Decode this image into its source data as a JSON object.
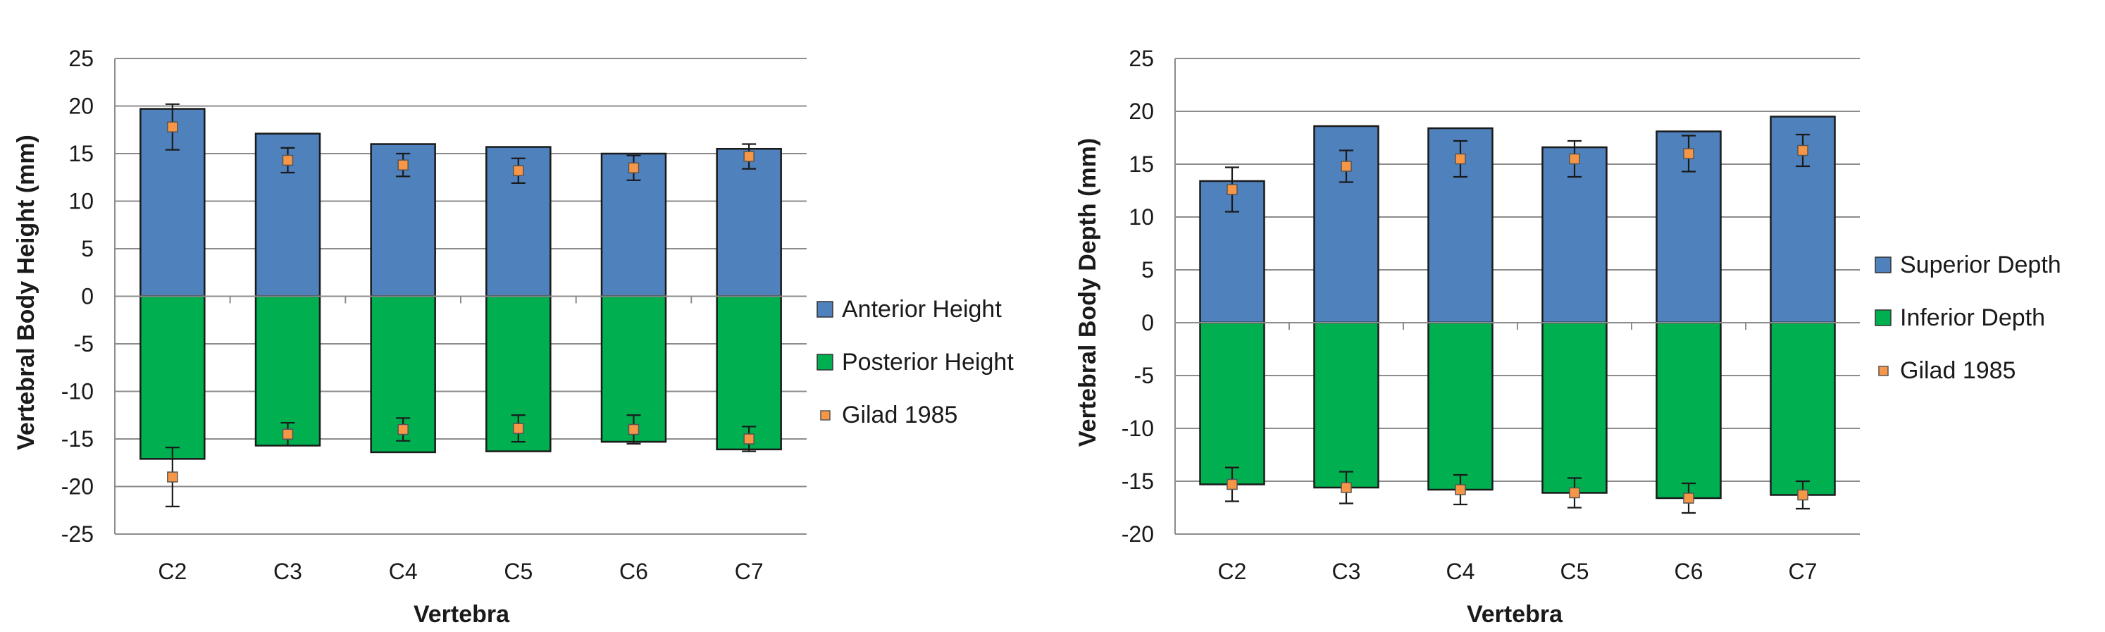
{
  "chart_data": [
    {
      "type": "bar",
      "stacked": true,
      "categories": [
        "C2",
        "C3",
        "C4",
        "C5",
        "C6",
        "C7"
      ],
      "xlabel": "Vertebra",
      "ylabel": "Vertebral Body Height (mm)",
      "ylim": [
        -25,
        25
      ],
      "yticks": [
        25,
        20,
        15,
        10,
        5,
        0,
        -5,
        -10,
        -15,
        -20,
        -25
      ],
      "grid": true,
      "legend_position": "right",
      "series": [
        {
          "name": "Anterior Height",
          "color": "#4f81bd",
          "values": [
            19.7,
            17.1,
            16.0,
            15.7,
            15.0,
            15.5
          ]
        },
        {
          "name": "Posterior Height",
          "color": "#00b050",
          "values": [
            -17.1,
            -15.7,
            -16.4,
            -16.3,
            -15.3,
            -16.1
          ]
        }
      ],
      "markers": {
        "name": "Gilad 1985",
        "color": "#f79646",
        "points": [
          {
            "upper": 17.8,
            "upper_err": 2.4,
            "lower": -19.0,
            "lower_err": 3.1
          },
          {
            "upper": 14.3,
            "upper_err": 1.3,
            "lower": -14.5,
            "lower_err": 1.2
          },
          {
            "upper": 13.8,
            "upper_err": 1.2,
            "lower": -14.0,
            "lower_err": 1.2
          },
          {
            "upper": 13.2,
            "upper_err": 1.3,
            "lower": -13.9,
            "lower_err": 1.4
          },
          {
            "upper": 13.5,
            "upper_err": 1.3,
            "lower": -14.0,
            "lower_err": 1.5
          },
          {
            "upper": 14.7,
            "upper_err": 1.3,
            "lower": -15.0,
            "lower_err": 1.3
          }
        ]
      }
    },
    {
      "type": "bar",
      "stacked": true,
      "categories": [
        "C2",
        "C3",
        "C4",
        "C5",
        "C6",
        "C7"
      ],
      "xlabel": "Vertebra",
      "ylabel": "Vertebral Body Depth (mm)",
      "ylim": [
        -20,
        25
      ],
      "yticks": [
        25,
        20,
        15,
        10,
        5,
        0,
        -5,
        -10,
        -15,
        -20
      ],
      "grid": true,
      "legend_position": "right",
      "series": [
        {
          "name": "Superior Depth",
          "color": "#4f81bd",
          "values": [
            13.4,
            18.6,
            18.4,
            16.6,
            18.1,
            19.5
          ]
        },
        {
          "name": "Inferior Depth",
          "color": "#00b050",
          "values": [
            -15.3,
            -15.6,
            -15.8,
            -16.1,
            -16.6,
            -16.3
          ]
        }
      ],
      "markers": {
        "name": "Gilad 1985",
        "color": "#f79646",
        "points": [
          {
            "upper": 12.6,
            "upper_err": 2.1,
            "lower": -15.3,
            "lower_err": 1.6
          },
          {
            "upper": 14.8,
            "upper_err": 1.5,
            "lower": -15.6,
            "lower_err": 1.5
          },
          {
            "upper": 15.5,
            "upper_err": 1.7,
            "lower": -15.8,
            "lower_err": 1.4
          },
          {
            "upper": 15.5,
            "upper_err": 1.7,
            "lower": -16.1,
            "lower_err": 1.4
          },
          {
            "upper": 16.0,
            "upper_err": 1.7,
            "lower": -16.6,
            "lower_err": 1.4
          },
          {
            "upper": 16.3,
            "upper_err": 1.5,
            "lower": -16.3,
            "lower_err": 1.3
          }
        ]
      }
    }
  ]
}
